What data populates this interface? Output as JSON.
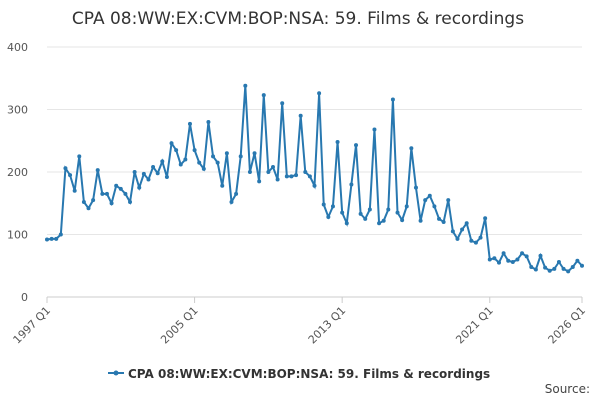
{
  "chart_data": {
    "type": "line",
    "title": "CPA 08:WW:EX:CVM:BOP:NSA: 59. Films & recordings",
    "source": "Source:",
    "categories": [
      "1997 Q1",
      null,
      null,
      null,
      null,
      null,
      null,
      null,
      null,
      null,
      null,
      null,
      null,
      null,
      null,
      null,
      null,
      null,
      null,
      null,
      null,
      null,
      null,
      null,
      null,
      null,
      null,
      null,
      null,
      null,
      null,
      null,
      "2005 Q1",
      null,
      null,
      null,
      null,
      null,
      null,
      null,
      null,
      null,
      null,
      null,
      null,
      null,
      null,
      null,
      null,
      null,
      null,
      null,
      null,
      null,
      null,
      null,
      null,
      null,
      null,
      null,
      null,
      null,
      null,
      null,
      "2013 Q1",
      null,
      null,
      null,
      null,
      null,
      null,
      null,
      null,
      null,
      null,
      null,
      null,
      null,
      null,
      null,
      null,
      null,
      null,
      null,
      null,
      null,
      null,
      null,
      null,
      null,
      null,
      null,
      null,
      null,
      null,
      null,
      "2021 Q1",
      null,
      null,
      null,
      null,
      null,
      null,
      null,
      null,
      null,
      null,
      null,
      null,
      null,
      null,
      null,
      null,
      null,
      null,
      null,
      "2026 Q1"
    ],
    "series": [
      {
        "name": "CPA 08:WW:EX:CVM:BOP:NSA: 59. Films & recordings",
        "color": "#2878b0",
        "values": [
          92,
          93,
          93,
          100,
          206,
          195,
          170,
          225,
          152,
          142,
          155,
          203,
          165,
          165,
          150,
          178,
          173,
          165,
          152,
          200,
          175,
          197,
          188,
          208,
          198,
          217,
          192,
          246,
          235,
          212,
          220,
          277,
          235,
          215,
          205,
          280,
          225,
          215,
          178,
          230,
          152,
          165,
          225,
          338,
          200,
          230,
          185,
          323,
          200,
          208,
          188,
          310,
          193,
          193,
          195,
          290,
          200,
          193,
          178,
          326,
          148,
          128,
          145,
          248,
          135,
          118,
          180,
          243,
          133,
          125,
          140,
          268,
          118,
          122,
          140,
          316,
          135,
          123,
          145,
          238,
          175,
          122,
          155,
          162,
          145,
          125,
          120,
          155,
          105,
          93,
          108,
          118,
          90,
          87,
          95,
          126,
          60,
          62,
          55,
          70,
          58,
          56,
          60,
          70,
          65,
          48,
          44,
          66,
          47,
          42,
          45,
          56,
          45,
          41,
          48,
          58,
          50
        ]
      }
    ],
    "ylim": [
      0,
      400
    ],
    "yticks": [
      0,
      100,
      200,
      300,
      400
    ],
    "grid": true,
    "legend": "bottom"
  }
}
